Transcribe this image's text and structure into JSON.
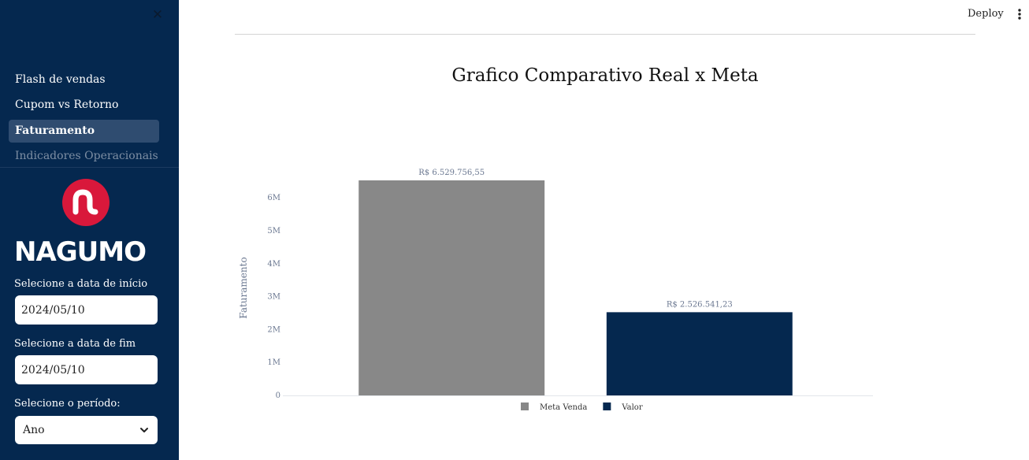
{
  "sidebar": {
    "close_icon": "close-icon",
    "nav_items": [
      "Flash de vendas",
      "Cupom vs Retorno",
      "Faturamento",
      "Indicadores Operacionais"
    ],
    "active_item": "Faturamento",
    "logo": {
      "wordmark": "NAGUMO",
      "color": "#d9183b"
    },
    "start_date": {
      "label": "Selecione a data de início",
      "value": "2024/05/10"
    },
    "end_date": {
      "label": "Selecione a data de fim",
      "value": "2024/05/10"
    },
    "period": {
      "label": "Selecione o período:",
      "value": "Ano"
    },
    "background": "#05284f"
  },
  "header": {
    "deploy_label": "Deploy",
    "menu_icon": "kebab-menu-icon"
  },
  "chart_data": {
    "type": "bar",
    "title": "Grafico Comparativo Real x Meta",
    "ylabel": "Faturamento",
    "xlabel": "",
    "ylim": [
      0,
      6.529756
    ],
    "yticks": [
      0,
      1,
      2,
      3,
      4,
      5,
      6
    ],
    "ytick_labels": [
      "0",
      "1M",
      "2M",
      "3M",
      "4M",
      "5M",
      "6M"
    ],
    "series": [
      {
        "name": "Meta Venda",
        "value": 6.52975655,
        "label": "R$ 6.529.756,55",
        "color": "#888888"
      },
      {
        "name": "Valor",
        "value": 2.52654123,
        "label": "R$ 2.526.541,23",
        "color": "#05284f"
      }
    ],
    "legend_position": "bottom",
    "grid": false
  }
}
